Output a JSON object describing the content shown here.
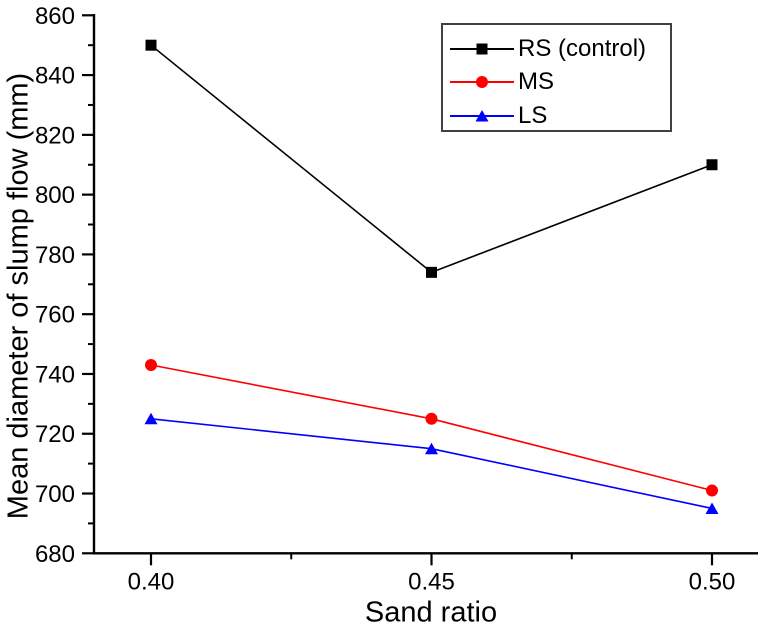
{
  "chart_data": {
    "type": "line",
    "title": "",
    "xlabel": "Sand ratio",
    "ylabel": "Mean diameter of slump flow (mm)",
    "x": [
      0.4,
      0.45,
      0.5
    ],
    "x_tick_labels": [
      "0.40",
      "0.45",
      "0.50"
    ],
    "x_minor_ticks": [
      0.425,
      0.475
    ],
    "xlim": [
      0.39,
      0.508
    ],
    "ylim": [
      680,
      860
    ],
    "y_major_ticks": [
      680,
      700,
      720,
      740,
      760,
      780,
      800,
      820,
      840,
      860
    ],
    "y_tick_labels": [
      "680",
      "700",
      "720",
      "740",
      "760",
      "780",
      "800",
      "820",
      "840",
      "860"
    ],
    "y_minor_ticks": [
      690,
      710,
      730,
      750,
      770,
      790,
      810,
      830,
      850
    ],
    "grid": false,
    "legend_position": "top-right",
    "series": [
      {
        "name": "RS (control)",
        "color": "#000000",
        "marker": "square",
        "values": [
          850,
          774,
          810
        ]
      },
      {
        "name": "MS",
        "color": "#ff0000",
        "marker": "circle",
        "values": [
          743,
          725,
          701
        ]
      },
      {
        "name": "LS",
        "color": "#0000ff",
        "marker": "triangle",
        "values": [
          725,
          715,
          695
        ]
      }
    ]
  },
  "colors": {
    "axis": "#000000",
    "text": "#000000",
    "legend_border": "#404040",
    "background": "#ffffff"
  }
}
